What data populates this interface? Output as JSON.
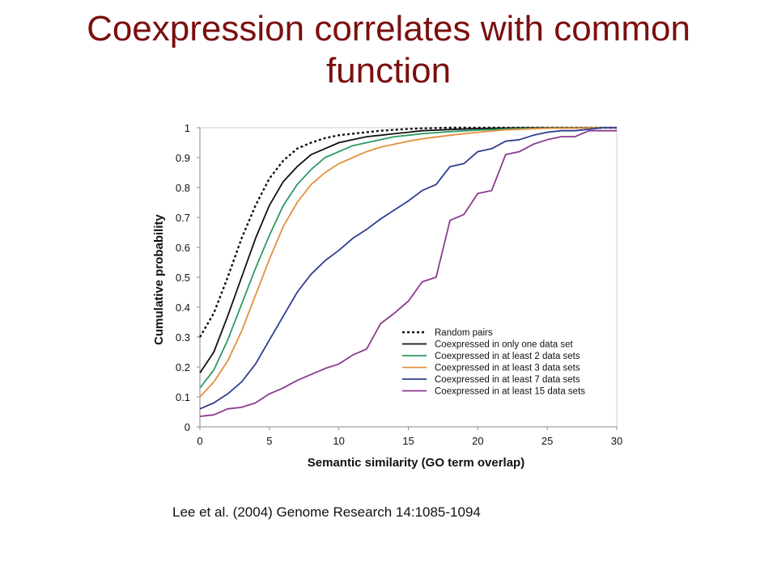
{
  "slide": {
    "title": "Coexpression correlates with common function",
    "citation": "Lee et al. (2004) Genome Research 14:1085-1094"
  },
  "chart_data": {
    "type": "line",
    "title": "",
    "xlabel": "Semantic similarity (GO term overlap)",
    "ylabel": "Cumulative probability",
    "xlim": [
      0,
      30
    ],
    "ylim": [
      0,
      1
    ],
    "xticks": [
      0,
      5,
      10,
      15,
      20,
      25,
      30
    ],
    "yticks": [
      0,
      0.1,
      0.2,
      0.3,
      0.4,
      0.5,
      0.6,
      0.7,
      0.8,
      0.9,
      1
    ],
    "grid": false,
    "legend_position": "lower-right",
    "series": [
      {
        "name": "Random pairs",
        "color": "#111111",
        "dash": true,
        "x": [
          0,
          1,
          2,
          3,
          4,
          5,
          6,
          7,
          8,
          9,
          10,
          11,
          12,
          13,
          14,
          15,
          16,
          17,
          18,
          20,
          25,
          30
        ],
        "y": [
          0.3,
          0.38,
          0.5,
          0.63,
          0.74,
          0.83,
          0.89,
          0.93,
          0.95,
          0.965,
          0.975,
          0.98,
          0.985,
          0.99,
          0.993,
          0.996,
          0.998,
          0.999,
          1.0,
          1.0,
          1.0,
          1.0
        ]
      },
      {
        "name": "Coexpressed in only one data set",
        "color": "#111111",
        "dash": false,
        "x": [
          0,
          1,
          2,
          3,
          4,
          5,
          6,
          7,
          8,
          9,
          10,
          11,
          12,
          13,
          14,
          15,
          16,
          17,
          18,
          20,
          22,
          25,
          30
        ],
        "y": [
          0.18,
          0.25,
          0.37,
          0.5,
          0.63,
          0.74,
          0.82,
          0.87,
          0.91,
          0.93,
          0.95,
          0.96,
          0.97,
          0.975,
          0.98,
          0.985,
          0.99,
          0.992,
          0.994,
          0.997,
          0.999,
          1.0,
          1.0
        ]
      },
      {
        "name": "Coexpressed in at least 2 data sets",
        "color": "#2a9a62",
        "dash": false,
        "x": [
          0,
          1,
          2,
          3,
          4,
          5,
          6,
          7,
          8,
          9,
          10,
          11,
          12,
          13,
          14,
          15,
          16,
          18,
          20,
          22,
          25,
          30
        ],
        "y": [
          0.13,
          0.19,
          0.29,
          0.41,
          0.53,
          0.64,
          0.74,
          0.81,
          0.86,
          0.9,
          0.92,
          0.94,
          0.95,
          0.96,
          0.97,
          0.975,
          0.98,
          0.987,
          0.992,
          0.996,
          0.999,
          1.0
        ]
      },
      {
        "name": "Coexpressed in at least 3 data sets",
        "color": "#e2903c",
        "dash": false,
        "x": [
          0,
          1,
          2,
          3,
          4,
          5,
          6,
          7,
          8,
          9,
          10,
          11,
          12,
          13,
          14,
          15,
          16,
          18,
          20,
          22,
          25,
          30
        ],
        "y": [
          0.1,
          0.15,
          0.22,
          0.32,
          0.44,
          0.56,
          0.67,
          0.75,
          0.81,
          0.85,
          0.88,
          0.9,
          0.92,
          0.935,
          0.945,
          0.955,
          0.963,
          0.975,
          0.985,
          0.993,
          0.998,
          1.0
        ]
      },
      {
        "name": "Coexpressed in at least 7 data sets",
        "color": "#2e3d8f",
        "dash": false,
        "x": [
          0,
          1,
          2,
          3,
          4,
          5,
          6,
          7,
          8,
          9,
          10,
          11,
          12,
          13,
          14,
          15,
          16,
          17,
          18,
          19,
          20,
          21,
          22,
          23,
          24,
          25,
          26,
          27,
          28,
          29,
          30
        ],
        "y": [
          0.06,
          0.08,
          0.11,
          0.15,
          0.21,
          0.29,
          0.37,
          0.45,
          0.51,
          0.555,
          0.59,
          0.63,
          0.66,
          0.695,
          0.725,
          0.755,
          0.79,
          0.81,
          0.87,
          0.88,
          0.92,
          0.93,
          0.955,
          0.96,
          0.975,
          0.985,
          0.99,
          0.99,
          0.995,
          1.0,
          1.0
        ]
      },
      {
        "name": "Coexpressed in at least 15 data sets",
        "color": "#8b3a8f",
        "dash": false,
        "x": [
          0,
          1,
          2,
          3,
          4,
          5,
          6,
          7,
          8,
          9,
          10,
          11,
          12,
          13,
          14,
          15,
          16,
          17,
          18,
          19,
          20,
          21,
          22,
          23,
          24,
          25,
          26,
          27,
          28,
          29,
          30
        ],
        "y": [
          0.035,
          0.04,
          0.06,
          0.065,
          0.08,
          0.11,
          0.13,
          0.155,
          0.175,
          0.195,
          0.21,
          0.24,
          0.26,
          0.345,
          0.38,
          0.42,
          0.485,
          0.5,
          0.69,
          0.71,
          0.78,
          0.79,
          0.91,
          0.92,
          0.945,
          0.96,
          0.97,
          0.97,
          0.99,
          0.99,
          0.99
        ]
      }
    ]
  }
}
